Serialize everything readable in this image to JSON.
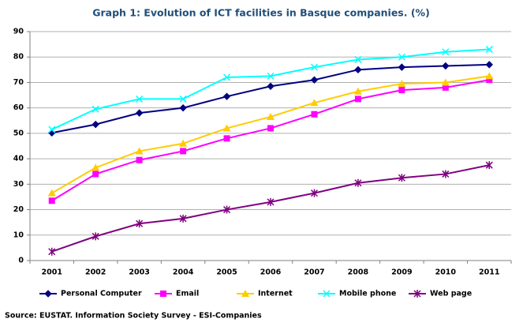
{
  "chart_data": {
    "type": "line",
    "title": "Graph 1: Evolution of ICT facilities in Basque companies. (%)",
    "source": "Source: EUSTAT. Information Society Survey - ESI-Companies",
    "categories": [
      "2001",
      "2002",
      "2003",
      "2004",
      "2005",
      "2006",
      "2007",
      "2008",
      "2009",
      "2010",
      "2011"
    ],
    "series": [
      {
        "name": "Personal Computer",
        "color": "#000080",
        "marker": "diamond",
        "values": [
          50.2,
          53.5,
          58,
          60,
          64.5,
          68.5,
          71,
          75,
          76,
          76.5,
          77
        ]
      },
      {
        "name": "Email",
        "color": "#ff00ff",
        "marker": "square",
        "values": [
          23.5,
          34,
          39.5,
          43,
          48,
          52,
          57.5,
          63.5,
          67,
          68,
          71
        ]
      },
      {
        "name": "Internet",
        "color": "#ffcc00",
        "marker": "triangle",
        "values": [
          26.5,
          36.5,
          43,
          46,
          52,
          56.5,
          62,
          66.5,
          69.5,
          70,
          72.5
        ]
      },
      {
        "name": "Mobile phone",
        "color": "#00ffff",
        "marker": "x",
        "values": [
          51.5,
          59.5,
          63.5,
          63.5,
          72,
          72.5,
          76,
          79,
          80,
          82,
          83
        ]
      },
      {
        "name": "Web page",
        "color": "#800080",
        "marker": "star",
        "values": [
          3.5,
          9.5,
          14.5,
          16.5,
          20,
          23,
          26.5,
          30.5,
          32.5,
          34,
          37.5
        ]
      }
    ],
    "ylim": [
      0,
      90
    ],
    "yticks": [
      0,
      10,
      20,
      30,
      40,
      50,
      60,
      70,
      80,
      90
    ],
    "grid": true,
    "legend": "bottom"
  }
}
